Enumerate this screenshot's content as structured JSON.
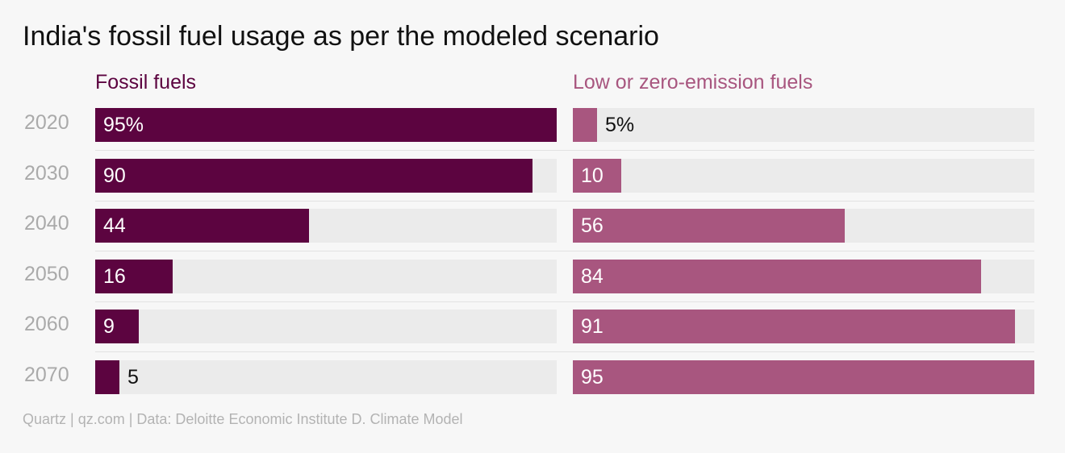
{
  "chart_data": {
    "type": "bar",
    "title": "India's fossil fuel usage as per the modeled scenario",
    "categories": [
      "2020",
      "2030",
      "2040",
      "2050",
      "2060",
      "2070"
    ],
    "series": [
      {
        "name": "Fossil fuels",
        "values": [
          95,
          90,
          44,
          16,
          9,
          5
        ],
        "labels": [
          "95%",
          "90",
          "44",
          "16",
          "9",
          "5"
        ],
        "color": "#5c0440"
      },
      {
        "name": "Low or zero-emission fuels",
        "values": [
          5,
          10,
          56,
          84,
          91,
          95
        ],
        "labels": [
          "5%",
          "10",
          "56",
          "84",
          "91",
          "95"
        ],
        "color": "#a8567f"
      }
    ],
    "xlim": [
      0,
      95
    ],
    "track_color": "#ebebeb",
    "source": "Quartz | qz.com | Data: Deloitte Economic Institute D. Climate Model"
  }
}
